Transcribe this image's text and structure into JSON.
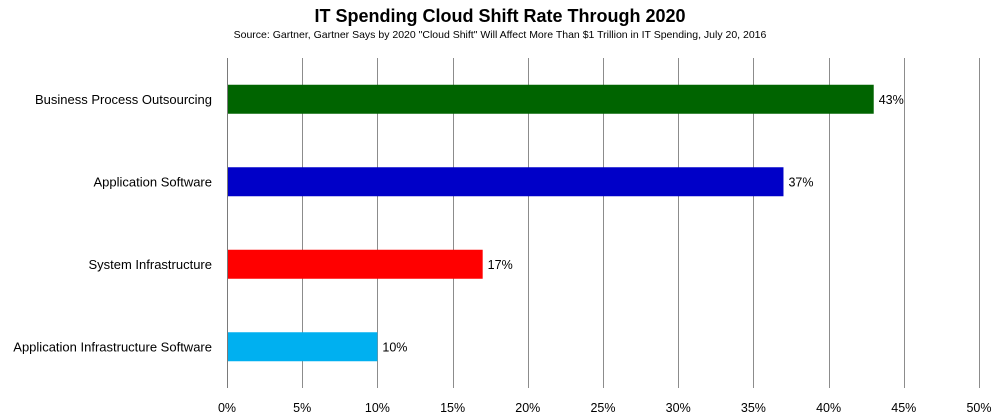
{
  "chart_data": {
    "type": "bar",
    "orientation": "horizontal",
    "title": "IT Spending Cloud Shift Rate Through 2020",
    "subtitle": "Source: Gartner, Gartner Says by 2020  \"Cloud Shift\" Will Affect More Than $1 Trillion in IT Spending, July 20, 2016",
    "categories": [
      "Business Process Outsourcing",
      "Application Software",
      "System Infrastructure",
      "Application Infrastructure Software"
    ],
    "values": [
      43,
      37,
      17,
      10
    ],
    "data_labels": [
      "43%",
      "37%",
      "17%",
      "10%"
    ],
    "colors": [
      "#006400",
      "#0000c8",
      "#ff0000",
      "#00b0f0"
    ],
    "xlim": [
      0,
      50
    ],
    "x_ticks": [
      0,
      5,
      10,
      15,
      20,
      25,
      30,
      35,
      40,
      45,
      50
    ],
    "x_tick_labels": [
      "0%",
      "5%",
      "10%",
      "15%",
      "20%",
      "25%",
      "30%",
      "35%",
      "40%",
      "45%",
      "50%"
    ],
    "grid": "vertical",
    "legend": "none"
  }
}
